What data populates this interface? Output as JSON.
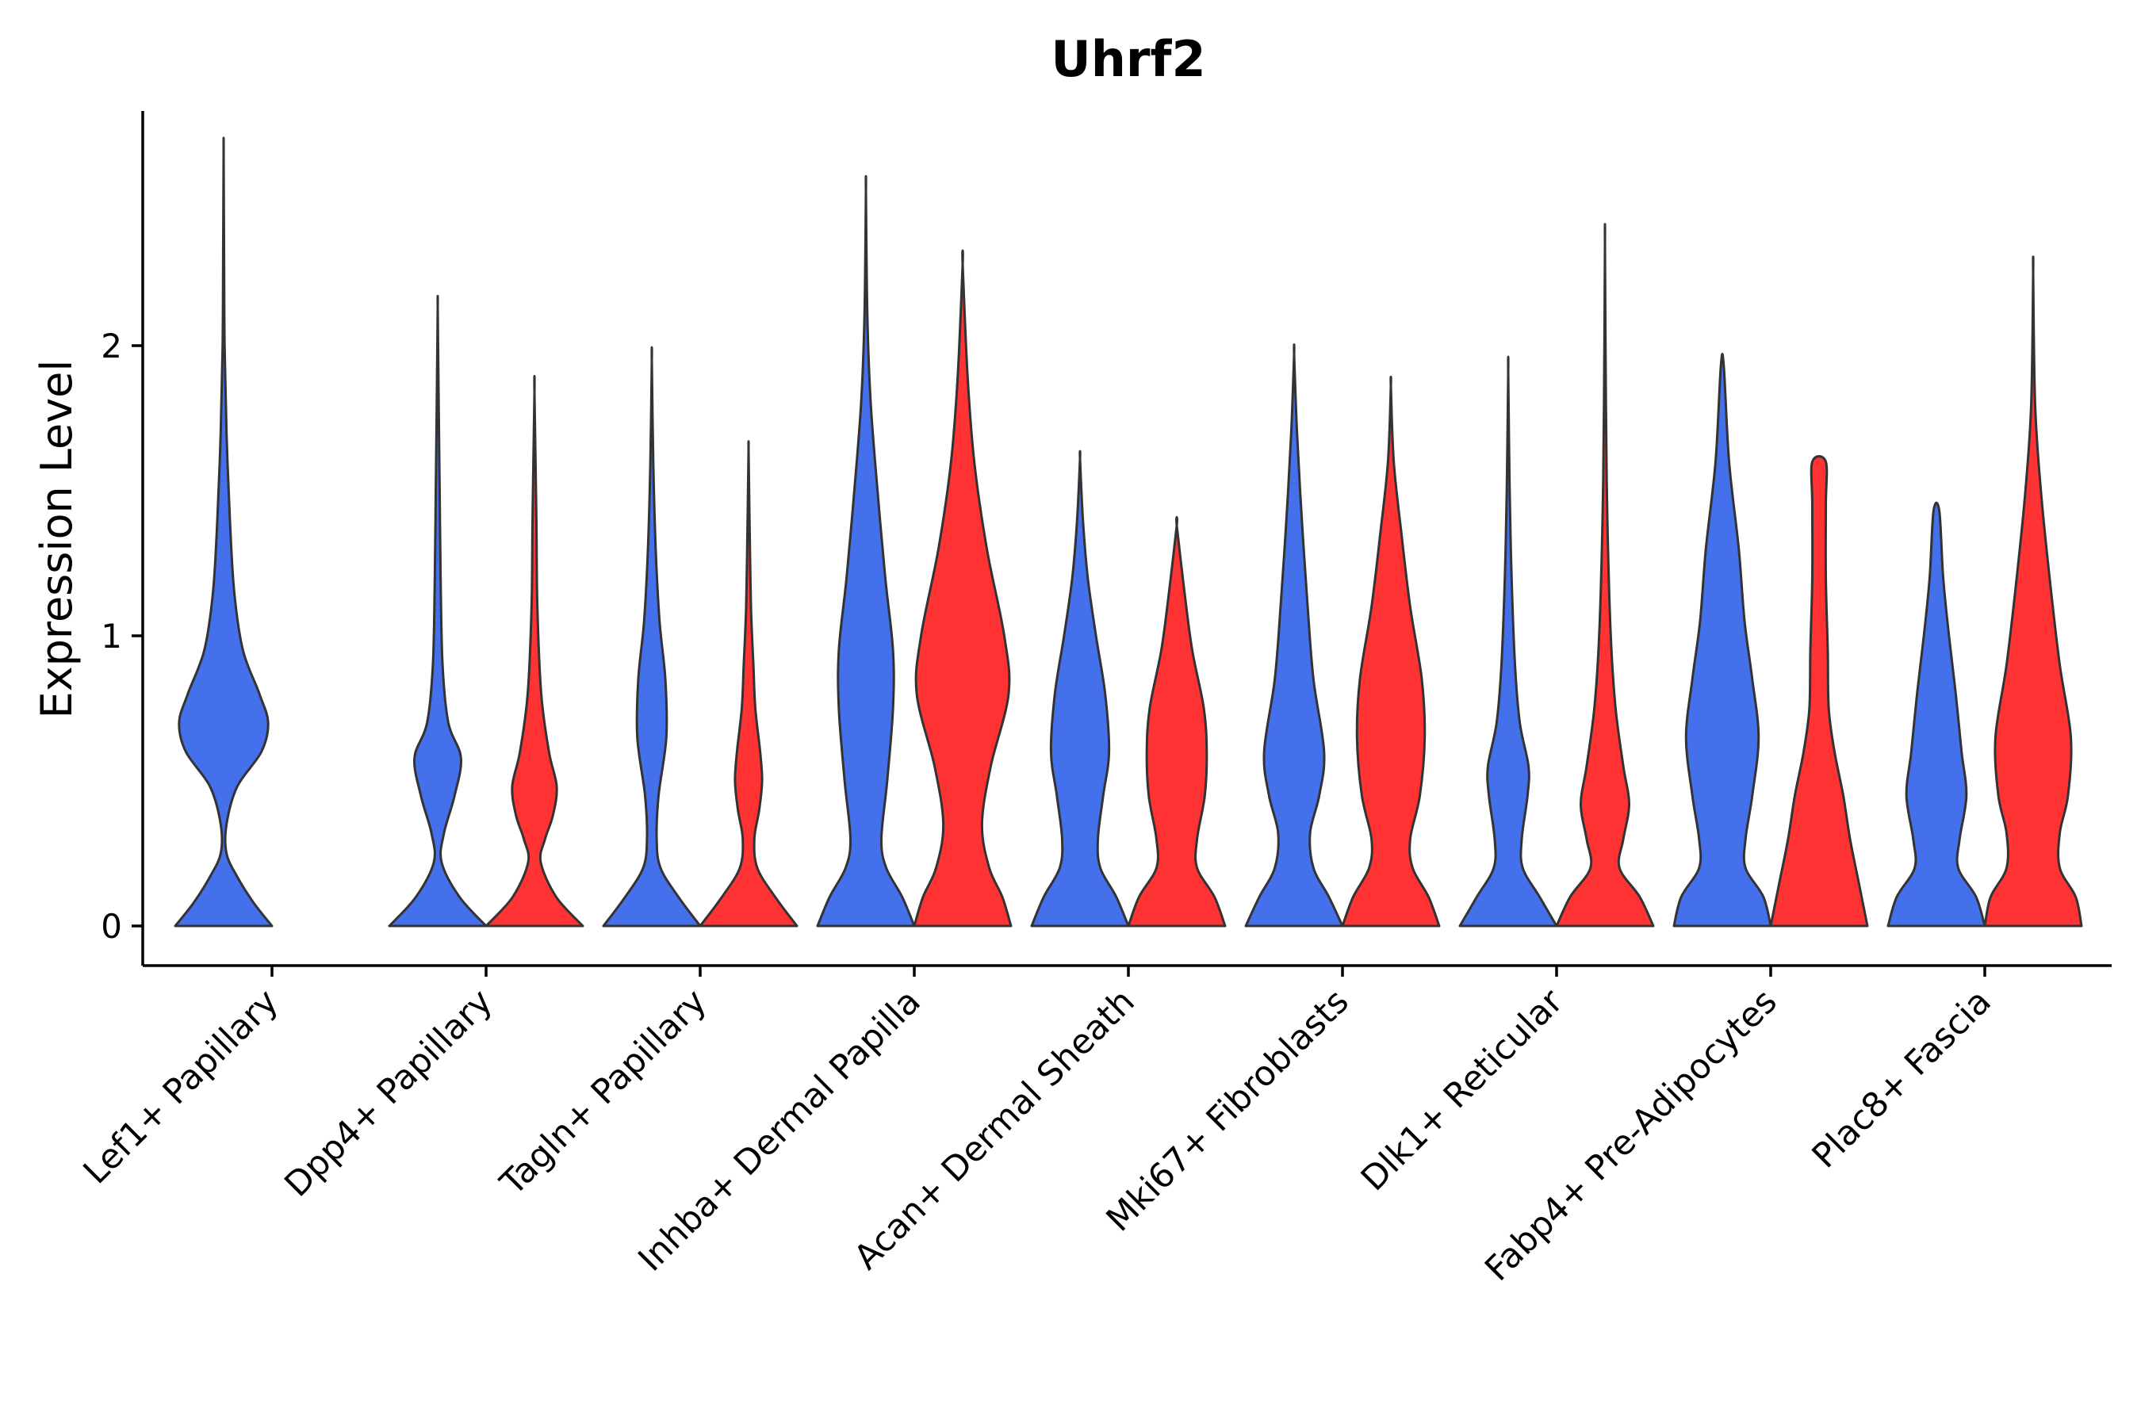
{
  "chart_data": {
    "type": "violin",
    "title": "Uhrf2",
    "xlabel": "",
    "ylabel": "Expression Level",
    "ylim": [
      -0.13,
      2.8
    ],
    "yticks": [
      0,
      1,
      2
    ],
    "ytick_labels": [
      "0",
      "1",
      "2"
    ],
    "grid": false,
    "legend": "none",
    "categories": [
      "Lef1+ Papillary",
      "Dpp4+ Papillary",
      "Tagln+ Papillary",
      "Inhba+ Dermal Papilla",
      "Acan+ Dermal Sheath",
      "Mki67+ Fibroblasts",
      "Dlk1+ Reticular",
      "Fabp4+ Pre-Adipocytes",
      "Plac8+ Fascia"
    ],
    "colors": {
      "group_a": "#4570EB",
      "group_b": "#FF3333",
      "outline": "#333333"
    },
    "violins": [
      {
        "category": 0,
        "group": "a",
        "max": 2.67,
        "profile": [
          [
            0,
            1.0
          ],
          [
            0.08,
            0.62
          ],
          [
            0.17,
            0.28
          ],
          [
            0.25,
            0.06
          ],
          [
            0.35,
            0.06
          ],
          [
            0.48,
            0.28
          ],
          [
            0.6,
            0.78
          ],
          [
            0.7,
            0.92
          ],
          [
            0.8,
            0.74
          ],
          [
            0.95,
            0.4
          ],
          [
            1.15,
            0.22
          ],
          [
            1.4,
            0.13
          ],
          [
            1.7,
            0.06
          ],
          [
            2.0,
            0.02
          ],
          [
            2.3,
            0.01
          ],
          [
            2.67,
            0.0
          ]
        ]
      },
      {
        "category": 1,
        "group": "a",
        "max": 2.13,
        "profile": [
          [
            0,
            1.0
          ],
          [
            0.1,
            0.45
          ],
          [
            0.22,
            0.08
          ],
          [
            0.32,
            0.13
          ],
          [
            0.45,
            0.35
          ],
          [
            0.58,
            0.48
          ],
          [
            0.7,
            0.22
          ],
          [
            0.9,
            0.1
          ],
          [
            1.2,
            0.06
          ],
          [
            1.5,
            0.04
          ],
          [
            1.8,
            0.02
          ],
          [
            2.13,
            0.0
          ]
        ]
      },
      {
        "category": 1,
        "group": "b",
        "max": 1.84,
        "profile": [
          [
            0,
            1.0
          ],
          [
            0.1,
            0.45
          ],
          [
            0.22,
            0.13
          ],
          [
            0.3,
            0.22
          ],
          [
            0.38,
            0.38
          ],
          [
            0.48,
            0.46
          ],
          [
            0.6,
            0.3
          ],
          [
            0.8,
            0.14
          ],
          [
            1.1,
            0.06
          ],
          [
            1.4,
            0.04
          ],
          [
            1.84,
            0.0
          ]
        ]
      },
      {
        "category": 2,
        "group": "a",
        "max": 1.95,
        "profile": [
          [
            0,
            1.0
          ],
          [
            0.1,
            0.55
          ],
          [
            0.2,
            0.18
          ],
          [
            0.3,
            0.1
          ],
          [
            0.45,
            0.14
          ],
          [
            0.65,
            0.3
          ],
          [
            0.85,
            0.28
          ],
          [
            1.05,
            0.16
          ],
          [
            1.3,
            0.08
          ],
          [
            1.6,
            0.03
          ],
          [
            1.95,
            0.0
          ]
        ]
      },
      {
        "category": 2,
        "group": "b",
        "max": 1.64,
        "profile": [
          [
            0,
            1.0
          ],
          [
            0.1,
            0.55
          ],
          [
            0.2,
            0.18
          ],
          [
            0.3,
            0.12
          ],
          [
            0.4,
            0.22
          ],
          [
            0.5,
            0.28
          ],
          [
            0.6,
            0.24
          ],
          [
            0.75,
            0.14
          ],
          [
            0.9,
            0.1
          ],
          [
            1.1,
            0.05
          ],
          [
            1.4,
            0.02
          ],
          [
            1.64,
            0.0
          ]
        ]
      },
      {
        "category": 3,
        "group": "a",
        "max": 2.53,
        "profile": [
          [
            0,
            1.0
          ],
          [
            0.1,
            0.75
          ],
          [
            0.2,
            0.42
          ],
          [
            0.3,
            0.32
          ],
          [
            0.5,
            0.44
          ],
          [
            0.75,
            0.56
          ],
          [
            0.95,
            0.56
          ],
          [
            1.2,
            0.4
          ],
          [
            1.5,
            0.24
          ],
          [
            1.8,
            0.1
          ],
          [
            2.1,
            0.03
          ],
          [
            2.53,
            0.0
          ]
        ]
      },
      {
        "category": 3,
        "group": "b",
        "max": 2.28,
        "profile": [
          [
            0,
            1.0
          ],
          [
            0.1,
            0.82
          ],
          [
            0.2,
            0.55
          ],
          [
            0.35,
            0.4
          ],
          [
            0.55,
            0.58
          ],
          [
            0.8,
            0.95
          ],
          [
            1.0,
            0.86
          ],
          [
            1.3,
            0.5
          ],
          [
            1.6,
            0.24
          ],
          [
            1.9,
            0.1
          ],
          [
            2.28,
            0.0
          ]
        ]
      },
      {
        "category": 4,
        "group": "a",
        "max": 1.61,
        "profile": [
          [
            0,
            1.0
          ],
          [
            0.1,
            0.75
          ],
          [
            0.2,
            0.42
          ],
          [
            0.3,
            0.37
          ],
          [
            0.45,
            0.48
          ],
          [
            0.6,
            0.6
          ],
          [
            0.8,
            0.52
          ],
          [
            1.0,
            0.33
          ],
          [
            1.2,
            0.16
          ],
          [
            1.4,
            0.06
          ],
          [
            1.61,
            0.0
          ]
        ]
      },
      {
        "category": 4,
        "group": "b",
        "max": 1.38,
        "profile": [
          [
            0,
            1.0
          ],
          [
            0.1,
            0.78
          ],
          [
            0.2,
            0.42
          ],
          [
            0.3,
            0.42
          ],
          [
            0.45,
            0.58
          ],
          [
            0.6,
            0.62
          ],
          [
            0.75,
            0.56
          ],
          [
            0.95,
            0.32
          ],
          [
            1.15,
            0.16
          ],
          [
            1.38,
            0.0
          ]
        ]
      },
      {
        "category": 5,
        "group": "a",
        "max": 1.97,
        "profile": [
          [
            0,
            1.0
          ],
          [
            0.1,
            0.72
          ],
          [
            0.2,
            0.4
          ],
          [
            0.32,
            0.33
          ],
          [
            0.45,
            0.52
          ],
          [
            0.6,
            0.62
          ],
          [
            0.85,
            0.4
          ],
          [
            1.1,
            0.28
          ],
          [
            1.4,
            0.16
          ],
          [
            1.7,
            0.06
          ],
          [
            1.97,
            0.0
          ]
        ]
      },
      {
        "category": 5,
        "group": "b",
        "max": 1.86,
        "profile": [
          [
            0,
            1.0
          ],
          [
            0.1,
            0.78
          ],
          [
            0.2,
            0.45
          ],
          [
            0.3,
            0.4
          ],
          [
            0.45,
            0.6
          ],
          [
            0.65,
            0.7
          ],
          [
            0.85,
            0.64
          ],
          [
            1.1,
            0.4
          ],
          [
            1.35,
            0.22
          ],
          [
            1.6,
            0.06
          ],
          [
            1.86,
            0.0
          ]
        ]
      },
      {
        "category": 6,
        "group": "a",
        "max": 1.91,
        "profile": [
          [
            0,
            1.0
          ],
          [
            0.1,
            0.65
          ],
          [
            0.2,
            0.3
          ],
          [
            0.3,
            0.28
          ],
          [
            0.45,
            0.4
          ],
          [
            0.55,
            0.42
          ],
          [
            0.7,
            0.24
          ],
          [
            0.9,
            0.14
          ],
          [
            1.2,
            0.07
          ],
          [
            1.5,
            0.03
          ],
          [
            1.91,
            0.0
          ]
        ]
      },
      {
        "category": 6,
        "group": "b",
        "max": 2.35,
        "profile": [
          [
            0,
            1.0
          ],
          [
            0.1,
            0.72
          ],
          [
            0.2,
            0.3
          ],
          [
            0.3,
            0.38
          ],
          [
            0.42,
            0.5
          ],
          [
            0.55,
            0.38
          ],
          [
            0.75,
            0.22
          ],
          [
            1.0,
            0.12
          ],
          [
            1.4,
            0.05
          ],
          [
            1.8,
            0.02
          ],
          [
            2.35,
            0.0
          ]
        ]
      },
      {
        "category": 7,
        "group": "a",
        "max": 1.93,
        "profile": [
          [
            0,
            1.0
          ],
          [
            0.1,
            0.85
          ],
          [
            0.2,
            0.48
          ],
          [
            0.3,
            0.48
          ],
          [
            0.45,
            0.62
          ],
          [
            0.65,
            0.75
          ],
          [
            0.85,
            0.62
          ],
          [
            1.05,
            0.46
          ],
          [
            1.3,
            0.34
          ],
          [
            1.6,
            0.14
          ],
          [
            1.93,
            0.03
          ]
        ]
      },
      {
        "category": 7,
        "group": "b",
        "max": 1.6,
        "profile": [
          [
            0,
            1.0
          ],
          [
            0.15,
            0.82
          ],
          [
            0.3,
            0.64
          ],
          [
            0.45,
            0.5
          ],
          [
            0.6,
            0.32
          ],
          [
            0.75,
            0.2
          ],
          [
            0.95,
            0.18
          ],
          [
            1.2,
            0.14
          ],
          [
            1.45,
            0.14
          ],
          [
            1.6,
            0.14
          ]
        ]
      },
      {
        "category": 8,
        "group": "a",
        "max": 1.43,
        "profile": [
          [
            0,
            1.0
          ],
          [
            0.1,
            0.82
          ],
          [
            0.2,
            0.45
          ],
          [
            0.3,
            0.48
          ],
          [
            0.45,
            0.62
          ],
          [
            0.6,
            0.52
          ],
          [
            0.8,
            0.4
          ],
          [
            1.0,
            0.26
          ],
          [
            1.2,
            0.14
          ],
          [
            1.43,
            0.06
          ]
        ]
      },
      {
        "category": 8,
        "group": "b",
        "max": 2.25,
        "profile": [
          [
            0,
            1.0
          ],
          [
            0.1,
            0.88
          ],
          [
            0.2,
            0.55
          ],
          [
            0.32,
            0.55
          ],
          [
            0.45,
            0.72
          ],
          [
            0.65,
            0.78
          ],
          [
            0.9,
            0.55
          ],
          [
            1.2,
            0.34
          ],
          [
            1.5,
            0.16
          ],
          [
            1.8,
            0.04
          ],
          [
            2.25,
            0.0
          ]
        ]
      }
    ]
  }
}
